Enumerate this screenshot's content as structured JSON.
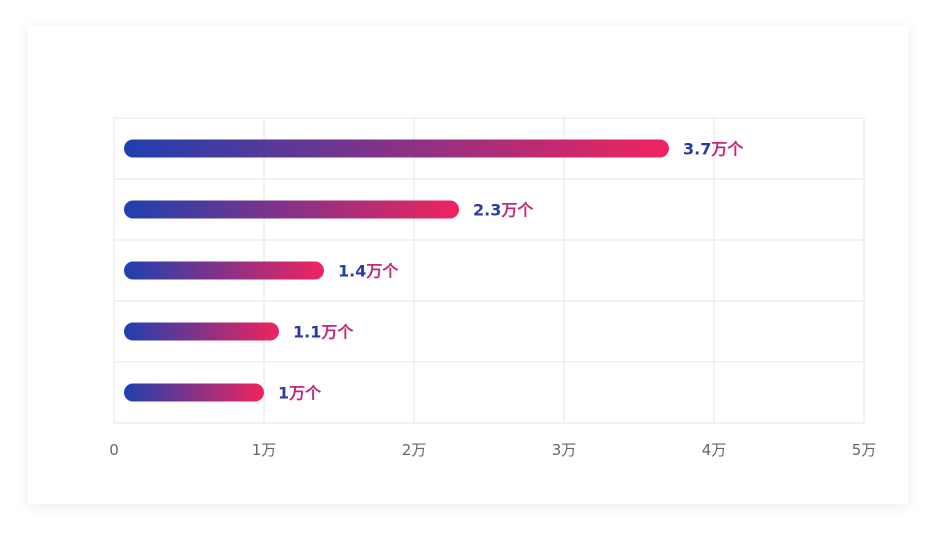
{
  "chart_data": {
    "type": "bar",
    "orientation": "horizontal",
    "categories": [
      "",
      "",
      "",
      "",
      ""
    ],
    "values": [
      37000,
      23000,
      14000,
      11000,
      10000
    ],
    "data_labels": [
      "3.7万个",
      "2.3万个",
      "1.4万个",
      "1.1万个",
      "1万个"
    ],
    "x_ticks": [
      {
        "value": 0,
        "label": "0"
      },
      {
        "value": 10000,
        "label": "1万"
      },
      {
        "value": 20000,
        "label": "2万"
      },
      {
        "value": 30000,
        "label": "3万"
      },
      {
        "value": 40000,
        "label": "4万"
      },
      {
        "value": 50000,
        "label": "5万"
      }
    ],
    "xlim": [
      0,
      50000
    ],
    "grid": true,
    "gradient": {
      "start": "#1e40af",
      "end": "#f0245e"
    },
    "title": "",
    "xlabel": "",
    "ylabel": ""
  }
}
